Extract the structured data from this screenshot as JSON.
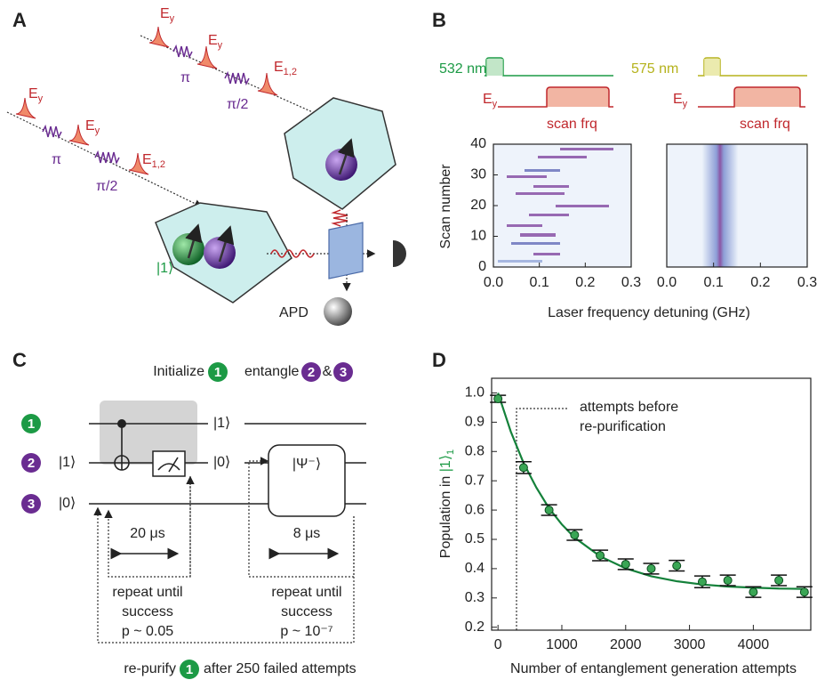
{
  "panel_labels": [
    "A",
    "B",
    "C",
    "D"
  ],
  "panel_a": {
    "sequences": [
      [
        {
          "main": "E",
          "sub": "y"
        },
        "π",
        {
          "main": "E",
          "sub": "y"
        },
        "π/2",
        {
          "main": "E",
          "sub": "1,2"
        }
      ],
      [
        {
          "main": "E",
          "sub": "y"
        },
        "π",
        {
          "main": "E",
          "sub": "y"
        },
        "π/2",
        {
          "main": "E",
          "sub": "1,2"
        }
      ]
    ],
    "state": "|1⟩",
    "apd": "APD"
  },
  "panel_b": {
    "lasers": [
      "532 nm",
      "575 nm"
    ],
    "field": {
      "main": "E",
      "sub": "y"
    },
    "scan": "scan frq",
    "ylabel": "Scan number",
    "xlabel": "Laser frequency detuning (GHz)",
    "maps": [
      {
        "xlim": [
          0,
          0.3
        ],
        "xticks": [
          {
            "value": 0,
            "label": "0.0"
          },
          0.1,
          0.2,
          0.3
        ],
        "ylim": [
          0,
          40
        ],
        "yticks": [
          0,
          10,
          20,
          30,
          40
        ]
      },
      {
        "xlim": [
          0,
          0.3
        ],
        "xticks": [
          {
            "value": 0,
            "label": "0.0"
          },
          0.1,
          0.2,
          0.3
        ],
        "ylim": [
          0,
          40
        ]
      }
    ]
  },
  "panel_c": {
    "initialize": "Initialize",
    "entangle": "entangle",
    "and": "&",
    "qubits": [
      "1",
      "2",
      "3"
    ],
    "kets": [
      "|1⟩",
      "|0⟩",
      "|1⟩",
      "|0⟩"
    ],
    "gate": "|Ψ⁻⟩",
    "loops": [
      {
        "time": "20 μs",
        "lines": [
          "repeat until",
          "success",
          "p ~ 0.05"
        ]
      },
      {
        "time": "8 μs",
        "lines": [
          "repeat until",
          "success",
          "p ~ 10⁻⁷"
        ]
      }
    ],
    "repurify": "re-purify",
    "after": "after 250 failed attempts"
  },
  "chart_data": {
    "type": "scatter",
    "xlabel": "Number of entanglement generation attempts",
    "ylabel": "Population in",
    "ylabel_state": "|1⟩",
    "ylabel_sub": "1",
    "annotation": [
      "attempts before",
      "re-purification"
    ],
    "x": [
      0,
      400,
      800,
      1200,
      1600,
      2000,
      2400,
      2800,
      3200,
      3600,
      4000,
      4400,
      4800
    ],
    "values": [
      0.98,
      0.745,
      0.6,
      0.515,
      0.445,
      0.415,
      0.4,
      0.41,
      0.355,
      0.36,
      0.32,
      0.36,
      0.32
    ],
    "errors": [
      0.012,
      0.02,
      0.018,
      0.018,
      0.018,
      0.018,
      0.018,
      0.018,
      0.02,
      0.018,
      0.018,
      0.018,
      0.018
    ],
    "color": "#3aa655",
    "fit": {
      "color": "#14813a",
      "x": [
        0,
        200,
        400,
        600,
        800,
        1000,
        1200,
        1600,
        2000,
        2400,
        2800,
        3200,
        3600,
        4000,
        4400,
        4800
      ],
      "values": [
        1.0,
        0.868,
        0.761,
        0.677,
        0.606,
        0.551,
        0.506,
        0.442,
        0.401,
        0.374,
        0.357,
        0.346,
        0.339,
        0.335,
        0.332,
        0.331
      ]
    },
    "xlim": [
      -100,
      4900
    ],
    "ylim": [
      0.19,
      1.05
    ],
    "xticks": [
      0,
      1000,
      2000,
      3000,
      4000
    ],
    "yticks": [
      0.2,
      0.3,
      0.4,
      0.5,
      0.6,
      0.7,
      0.8,
      0.9,
      {
        "value": 1,
        "label": "1.0"
      }
    ]
  }
}
